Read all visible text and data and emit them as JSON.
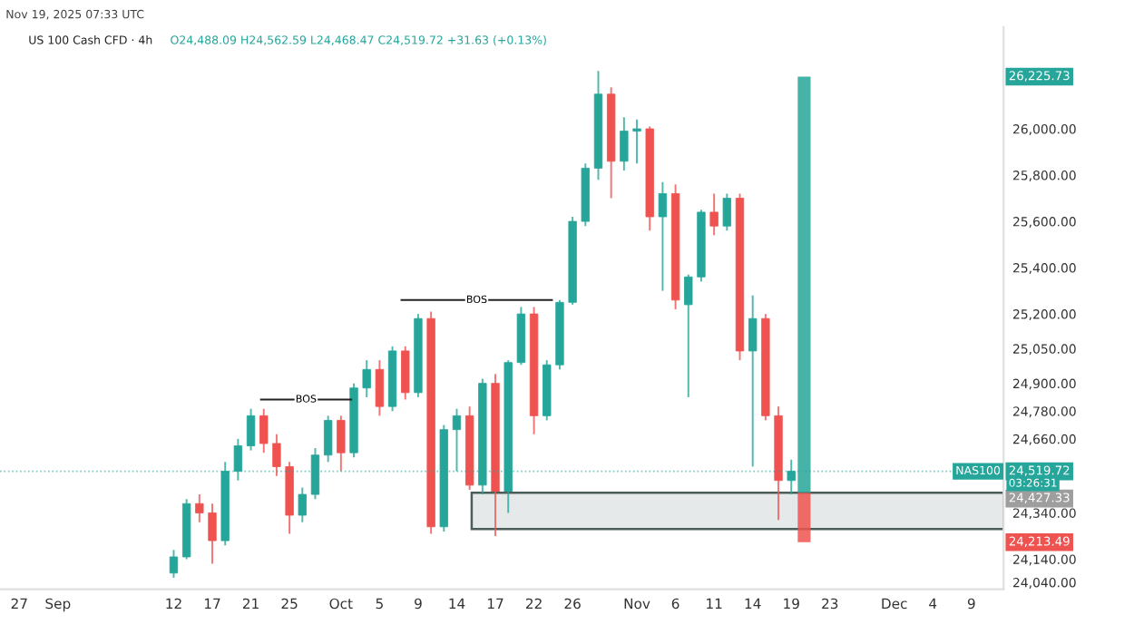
{
  "chart_data": {
    "type": "candlestick",
    "title": "US 100 Cash CFD · 4h",
    "subtitle": "O24,488.09 H24,562.59 L24,468.47 C24,519.72 +31.63 (+0.13%)",
    "categories": [
      null,
      "27",
      null,
      null,
      "Sep",
      null,
      null,
      null,
      null,
      null,
      null,
      null,
      null,
      "12",
      null,
      null,
      "17",
      null,
      null,
      "21",
      null,
      null,
      "25",
      null,
      null,
      null,
      "Oct",
      null,
      null,
      "5",
      null,
      null,
      "9",
      null,
      null,
      "14",
      null,
      null,
      "17",
      null,
      null,
      "22",
      null,
      null,
      "26",
      null,
      null,
      null,
      null,
      "Nov",
      null,
      null,
      "6",
      null,
      null,
      "11",
      null,
      null,
      "14",
      null,
      null,
      "19",
      null,
      null,
      "23",
      null,
      null,
      null,
      null,
      "Dec",
      null,
      null,
      "4",
      null,
      null,
      "9",
      null,
      null
    ],
    "ohlc": [
      null,
      null,
      null,
      null,
      null,
      null,
      null,
      null,
      null,
      null,
      null,
      null,
      null,
      [
        24080,
        24180,
        24060,
        24150
      ],
      [
        24150,
        24400,
        24140,
        24380
      ],
      [
        24380,
        24420,
        24300,
        24340
      ],
      [
        24340,
        24380,
        24120,
        24220
      ],
      [
        24220,
        24560,
        24200,
        24520
      ],
      [
        24520,
        24660,
        24480,
        24630
      ],
      [
        24630,
        24790,
        24610,
        24760
      ],
      [
        24760,
        24790,
        24600,
        24640
      ],
      [
        24640,
        24680,
        24500,
        24540
      ],
      [
        24540,
        24560,
        24250,
        24330
      ],
      [
        24330,
        24450,
        24300,
        24420
      ],
      [
        24420,
        24620,
        24400,
        24590
      ],
      [
        24590,
        24760,
        24560,
        24740
      ],
      [
        24740,
        24760,
        24520,
        24600
      ],
      [
        24600,
        24900,
        24580,
        24880
      ],
      [
        24880,
        25000,
        24840,
        24960
      ],
      [
        24960,
        25000,
        24760,
        24800
      ],
      [
        24800,
        25060,
        24780,
        25040
      ],
      [
        25040,
        25060,
        24830,
        24860
      ],
      [
        24860,
        25200,
        24840,
        25180
      ],
      [
        25180,
        25210,
        24250,
        24280
      ],
      [
        24280,
        24720,
        24260,
        24700
      ],
      [
        24700,
        24790,
        24520,
        24760
      ],
      [
        24760,
        24800,
        24440,
        24460
      ],
      [
        24460,
        24920,
        24420,
        24900
      ],
      [
        24900,
        24940,
        24240,
        24350
      ],
      [
        24350,
        25000,
        24340,
        24990
      ],
      [
        24990,
        25230,
        24980,
        25200
      ],
      [
        25200,
        25230,
        24680,
        24760
      ],
      [
        24760,
        25000,
        24740,
        24980
      ],
      [
        24980,
        25260,
        24960,
        25250
      ],
      [
        25250,
        25620,
        25240,
        25600
      ],
      [
        25600,
        25850,
        25580,
        25830
      ],
      [
        25830,
        26250,
        25780,
        26150
      ],
      [
        26150,
        26180,
        25700,
        25860
      ],
      [
        25860,
        26050,
        25820,
        25990
      ],
      [
        25990,
        26040,
        25850,
        26000
      ],
      [
        26000,
        26010,
        25560,
        25620
      ],
      [
        25620,
        25770,
        25300,
        25720
      ],
      [
        25720,
        25760,
        25220,
        25260
      ],
      [
        25240,
        25370,
        24840,
        25360
      ],
      [
        25360,
        25650,
        25340,
        25640
      ],
      [
        25640,
        25720,
        25540,
        25580
      ],
      [
        25580,
        25720,
        25560,
        25700
      ],
      [
        25700,
        25720,
        25000,
        25040
      ],
      [
        25040,
        25280,
        24540,
        25180
      ],
      [
        25180,
        25200,
        24740,
        24760
      ],
      [
        24760,
        24800,
        24310,
        24480
      ],
      [
        24480,
        24570,
        24420,
        24520
      ],
      null,
      null,
      null,
      null,
      null,
      null,
      null,
      null,
      null,
      null,
      null,
      null,
      null,
      null,
      null,
      null
    ],
    "colors": [
      null,
      null,
      null,
      null,
      null,
      null,
      null,
      null,
      null,
      null,
      null,
      null,
      null,
      "#26a69a",
      "#26a69a",
      "#ef5350",
      "#ef5350",
      "#26a69a",
      "#26a69a",
      "#26a69a",
      "#ef5350",
      "#ef5350",
      "#ef5350",
      "#26a69a",
      "#26a69a",
      "#26a69a",
      "#ef5350",
      "#26a69a",
      "#26a69a",
      "#ef5350",
      "#26a69a",
      "#ef5350",
      "#26a69a",
      "#ef5350",
      "#26a69a",
      "#26a69a",
      "#ef5350",
      "#26a69a",
      "#ef5350",
      "#26a69a",
      "#26a69a",
      "#ef5350",
      "#26a69a",
      "#26a69a",
      "#26a69a",
      "#26a69a",
      "#26a69a",
      "#ef5350",
      "#26a69a",
      "#26a69a",
      "#ef5350",
      "#26a69a",
      "#ef5350",
      "#26a69a",
      "#26a69a",
      "#ef5350",
      "#26a69a",
      "#ef5350",
      "#26a69a",
      "#ef5350",
      "#ef5350",
      "#26a69a",
      null,
      null,
      null,
      null,
      null,
      null,
      null,
      null,
      null,
      null,
      null,
      null,
      null,
      null,
      null,
      null
    ],
    "ylim": [
      24010,
      26440
    ],
    "yticks": [
      {
        "value": 24040,
        "label": "24,040.00"
      },
      {
        "value": 24140,
        "label": "24,140.00"
      },
      {
        "value": 24340,
        "label": "24,340.00"
      },
      {
        "value": 24660,
        "label": "24,660.00"
      },
      {
        "value": 24780,
        "label": "24,780.00"
      },
      {
        "value": 24900,
        "label": "24,900.00"
      },
      {
        "value": 25050,
        "label": "25,050.00"
      },
      {
        "value": 25200,
        "label": "25,200.00"
      },
      {
        "value": 25400,
        "label": "25,400.00"
      },
      {
        "value": 25600,
        "label": "25,600.00"
      },
      {
        "value": 25800,
        "label": "25,800.00"
      },
      {
        "value": 26000,
        "label": "26,000.00"
      }
    ],
    "series": [
      {
        "type": "bar",
        "color": "#26a69a",
        "values": [
          null,
          null,
          null,
          null,
          null,
          null,
          null,
          null,
          null,
          null,
          null,
          null,
          null,
          null,
          null,
          null,
          null,
          null,
          null,
          null,
          null,
          null,
          null,
          null,
          null,
          null,
          null,
          null,
          null,
          null,
          null,
          null,
          null,
          null,
          null,
          null,
          null,
          null,
          null,
          null,
          null,
          null,
          null,
          null,
          null,
          null,
          null,
          null,
          null,
          null,
          null,
          null,
          null,
          null,
          null,
          null,
          null,
          null,
          null,
          null,
          null,
          null,
          1798.4,
          null,
          null,
          null,
          null,
          null,
          null,
          null,
          null,
          null,
          null,
          null,
          null,
          null,
          null,
          null
        ],
        "base": [
          null,
          null,
          null,
          null,
          null,
          null,
          null,
          null,
          null,
          null,
          null,
          null,
          null,
          null,
          null,
          null,
          null,
          null,
          null,
          null,
          null,
          null,
          null,
          null,
          null,
          null,
          null,
          null,
          null,
          null,
          null,
          null,
          null,
          null,
          null,
          null,
          null,
          null,
          null,
          null,
          null,
          null,
          null,
          null,
          null,
          null,
          null,
          null,
          null,
          null,
          null,
          null,
          null,
          null,
          null,
          null,
          null,
          null,
          null,
          null,
          null,
          null,
          24427.33,
          null,
          null,
          null,
          null,
          null,
          null,
          null,
          null,
          null,
          null,
          null,
          null,
          null,
          null,
          null
        ]
      },
      {
        "type": "bar",
        "color": "#ef5350",
        "values": [
          null,
          null,
          null,
          null,
          null,
          null,
          null,
          null,
          null,
          null,
          null,
          null,
          null,
          null,
          null,
          null,
          null,
          null,
          null,
          null,
          null,
          null,
          null,
          null,
          null,
          null,
          null,
          null,
          null,
          null,
          null,
          null,
          null,
          null,
          null,
          null,
          null,
          null,
          null,
          null,
          null,
          null,
          null,
          null,
          null,
          null,
          null,
          null,
          null,
          null,
          null,
          null,
          null,
          null,
          null,
          null,
          null,
          null,
          null,
          null,
          null,
          null,
          213.84,
          null,
          null,
          null,
          null,
          null,
          null,
          null,
          null,
          null,
          null,
          null,
          null,
          null,
          null,
          null
        ],
        "base": [
          null,
          null,
          null,
          null,
          null,
          null,
          null,
          null,
          null,
          null,
          null,
          null,
          null,
          null,
          null,
          null,
          null,
          null,
          null,
          null,
          null,
          null,
          null,
          null,
          null,
          null,
          null,
          null,
          null,
          null,
          null,
          null,
          null,
          null,
          null,
          null,
          null,
          null,
          null,
          null,
          null,
          null,
          null,
          null,
          null,
          null,
          null,
          null,
          null,
          null,
          null,
          null,
          null,
          null,
          null,
          null,
          null,
          null,
          null,
          null,
          null,
          null,
          24213.49,
          null,
          null,
          null,
          null,
          null,
          null,
          null,
          null,
          null,
          null,
          null,
          null,
          null,
          null,
          null
        ]
      }
    ],
    "ref_lines": [
      {
        "axis": "y",
        "value": 24519.72,
        "label": "24,519.72",
        "color": "#26a69a",
        "line_style": "dotted"
      },
      {
        "axis": "y",
        "value": 24830,
        "label": "BOS",
        "color": "#222222",
        "line_style": "solid"
      },
      {
        "axis": "y",
        "value": 25260,
        "label": "BOS",
        "color": "#222222",
        "line_style": "solid"
      }
    ],
    "bands": [
      {
        "axis": "y",
        "from": 24270,
        "to": 24427.33,
        "label": "24,427.33",
        "color": "#e6e9ea"
      }
    ],
    "annotations": [
      "26,225.73",
      "24,213.49",
      "NAS100",
      "03:26:31",
      "Nov 19, 2025 07:33 UTC"
    ],
    "grid": false
  }
}
